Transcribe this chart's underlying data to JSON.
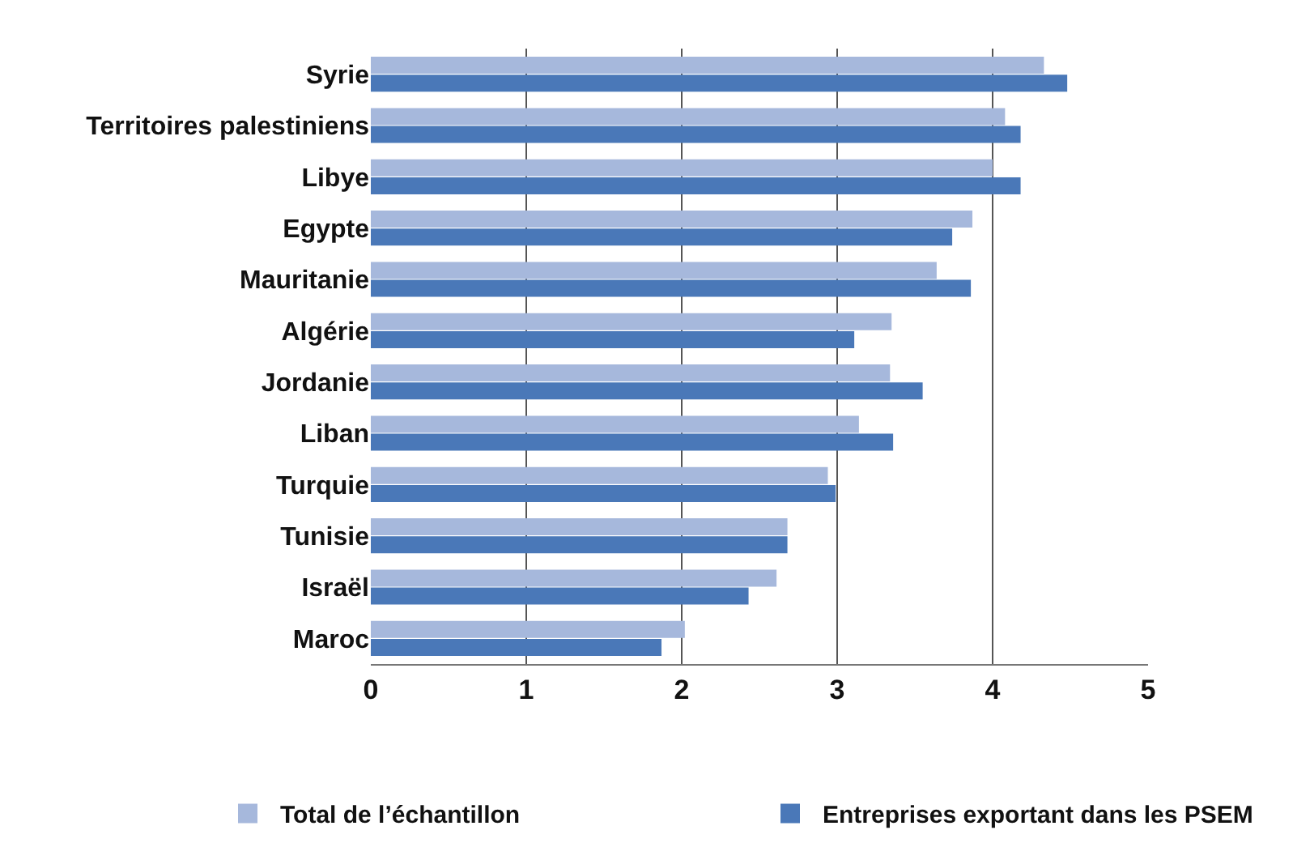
{
  "chart_data": {
    "type": "bar",
    "orientation": "horizontal",
    "categories": [
      "Syrie",
      "Territoires palestiniens",
      "Libye",
      "Egypte",
      "Mauritanie",
      "Algérie",
      "Jordanie",
      "Liban",
      "Turquie",
      "Tunisie",
      "Israël",
      "Maroc"
    ],
    "series": [
      {
        "name": "Total de l’échantillon",
        "color": "#a6b8dc",
        "values": [
          4.33,
          4.08,
          4.0,
          3.87,
          3.64,
          3.35,
          3.34,
          3.14,
          2.94,
          2.68,
          2.61,
          2.02
        ]
      },
      {
        "name": "Entreprises exportant dans les PSEM",
        "color": "#4a78b8",
        "values": [
          4.48,
          4.18,
          4.18,
          3.74,
          3.86,
          3.11,
          3.55,
          3.36,
          2.99,
          2.68,
          2.43,
          1.87
        ]
      }
    ],
    "xlim": [
      0,
      5
    ],
    "xticks": [
      0,
      1,
      2,
      3,
      4,
      5
    ],
    "grid": "x",
    "legend": "bottom"
  }
}
